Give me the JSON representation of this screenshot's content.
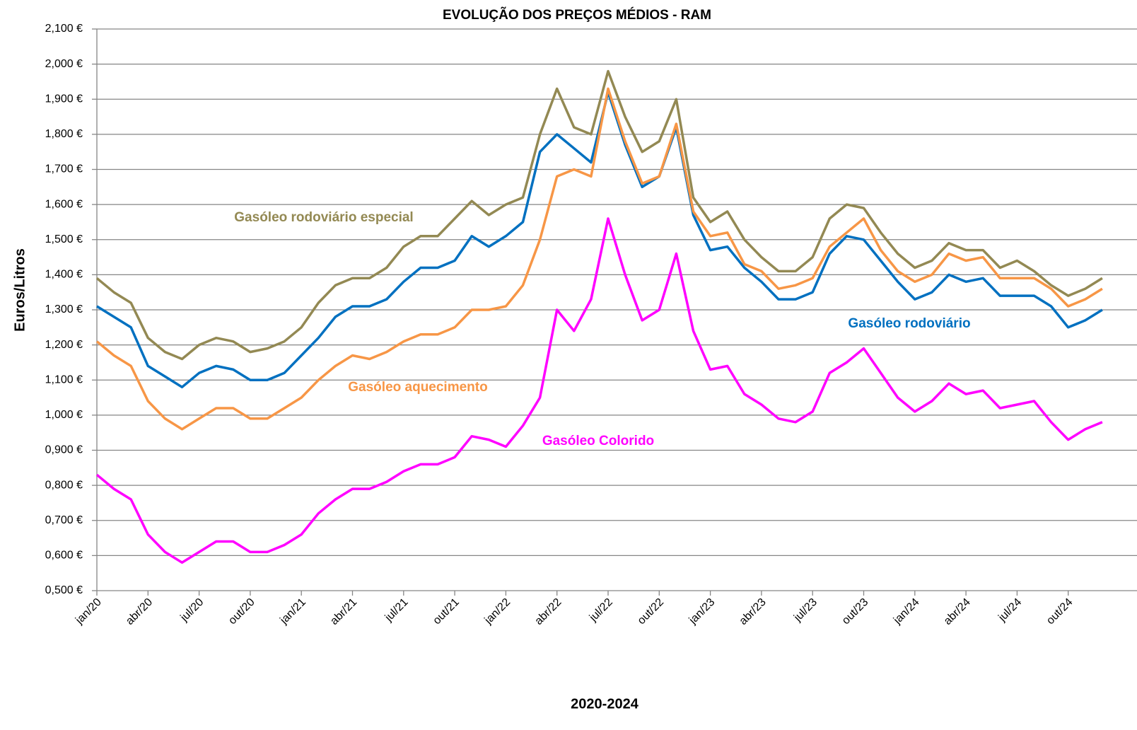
{
  "chart_data": {
    "type": "line",
    "title": "EVOLUÇÃO DOS PREÇOS MÉDIOS - RAM",
    "x_label": "2020-2024",
    "y_label": "Euros/Litros",
    "categories": [
      "jan/20",
      null,
      null,
      "abr/20",
      null,
      null,
      "jul/20",
      null,
      null,
      "out/20",
      null,
      null,
      "jan/21",
      null,
      null,
      "abr/21",
      null,
      null,
      "jul/21",
      null,
      null,
      "out/21",
      null,
      null,
      "jan/22",
      null,
      null,
      "abr/22",
      null,
      null,
      "jul/22",
      null,
      null,
      "out/22",
      null,
      null,
      "jan/23",
      null,
      null,
      "abr/23",
      null,
      null,
      "jul/23",
      null,
      null,
      "out/23",
      null,
      null,
      "jan/24",
      null,
      null,
      "abr/24",
      null,
      null,
      "jul/24",
      null,
      null,
      "out/24",
      null,
      null
    ],
    "ylim": [
      0.5,
      2.1
    ],
    "yticks": [
      {
        "value": 0.5,
        "label": "0,500 €"
      },
      {
        "value": 0.6,
        "label": "0,600 €"
      },
      {
        "value": 0.7,
        "label": "0,700 €"
      },
      {
        "value": 0.8,
        "label": "0,800 €"
      },
      {
        "value": 0.9,
        "label": "0,900 €"
      },
      {
        "value": 1.0,
        "label": "1,000 €"
      },
      {
        "value": 1.1,
        "label": "1,100 €"
      },
      {
        "value": 1.2,
        "label": "1,200 €"
      },
      {
        "value": 1.3,
        "label": "1,300 €"
      },
      {
        "value": 1.4,
        "label": "1,400 €"
      },
      {
        "value": 1.5,
        "label": "1,500 €"
      },
      {
        "value": 1.6,
        "label": "1,600 €"
      },
      {
        "value": 1.7,
        "label": "1,700 €"
      },
      {
        "value": 1.8,
        "label": "1,800 €"
      },
      {
        "value": 1.9,
        "label": "1,900 €"
      },
      {
        "value": 2.0,
        "label": "2,000 €"
      },
      {
        "value": 2.1,
        "label": "2,100 €"
      }
    ],
    "grid": true,
    "series": [
      {
        "name": "Gasóleo rodoviário especial",
        "color": "#938953",
        "values": [
          1.39,
          1.35,
          1.32,
          1.22,
          1.18,
          1.16,
          1.2,
          1.22,
          1.21,
          1.18,
          1.19,
          1.21,
          1.25,
          1.32,
          1.37,
          1.39,
          1.39,
          1.42,
          1.48,
          1.51,
          1.51,
          1.56,
          1.61,
          1.57,
          1.6,
          1.62,
          1.8,
          1.93,
          1.82,
          1.8,
          1.98,
          1.85,
          1.75,
          1.78,
          1.9,
          1.62,
          1.55,
          1.58,
          1.5,
          1.45,
          1.41,
          1.41,
          1.45,
          1.56,
          1.6,
          1.59,
          1.52,
          1.46,
          1.42,
          1.44,
          1.49,
          1.47,
          1.47,
          1.42,
          1.44,
          1.41,
          1.37,
          1.34,
          1.36,
          1.39
        ]
      },
      {
        "name": "Gasóleo rodoviário",
        "color": "#0070c0",
        "values": [
          1.31,
          1.28,
          1.25,
          1.14,
          1.11,
          1.08,
          1.12,
          1.14,
          1.13,
          1.1,
          1.1,
          1.12,
          1.17,
          1.22,
          1.28,
          1.31,
          1.31,
          1.33,
          1.38,
          1.42,
          1.42,
          1.44,
          1.51,
          1.48,
          1.51,
          1.55,
          1.75,
          1.8,
          1.76,
          1.72,
          1.92,
          1.77,
          1.65,
          1.68,
          1.82,
          1.57,
          1.47,
          1.48,
          1.42,
          1.38,
          1.33,
          1.33,
          1.35,
          1.46,
          1.51,
          1.5,
          1.44,
          1.38,
          1.33,
          1.35,
          1.4,
          1.38,
          1.39,
          1.34,
          1.34,
          1.34,
          1.31,
          1.25,
          1.27,
          1.3
        ]
      },
      {
        "name": "Gasóleo aquecimento",
        "color": "#f79646",
        "values": [
          1.21,
          1.17,
          1.14,
          1.04,
          0.99,
          0.96,
          0.99,
          1.02,
          1.02,
          0.99,
          0.99,
          1.02,
          1.05,
          1.1,
          1.14,
          1.17,
          1.16,
          1.18,
          1.21,
          1.23,
          1.23,
          1.25,
          1.3,
          1.3,
          1.31,
          1.37,
          1.5,
          1.68,
          1.7,
          1.68,
          1.93,
          1.78,
          1.66,
          1.68,
          1.83,
          1.58,
          1.51,
          1.52,
          1.43,
          1.41,
          1.36,
          1.37,
          1.39,
          1.48,
          1.52,
          1.56,
          1.47,
          1.41,
          1.38,
          1.4,
          1.46,
          1.44,
          1.45,
          1.39,
          1.39,
          1.39,
          1.36,
          1.31,
          1.33,
          1.36
        ]
      },
      {
        "name": "Gasóleo Colorido",
        "color": "#ff00ff",
        "values": [
          0.83,
          0.79,
          0.76,
          0.66,
          0.61,
          0.58,
          0.61,
          0.64,
          0.64,
          0.61,
          0.61,
          0.63,
          0.66,
          0.72,
          0.76,
          0.79,
          0.79,
          0.81,
          0.84,
          0.86,
          0.86,
          0.88,
          0.94,
          0.93,
          0.91,
          0.97,
          1.05,
          1.3,
          1.24,
          1.33,
          1.56,
          1.4,
          1.27,
          1.3,
          1.46,
          1.24,
          1.13,
          1.14,
          1.06,
          1.03,
          0.99,
          0.98,
          1.01,
          1.12,
          1.15,
          1.19,
          1.12,
          1.05,
          1.01,
          1.04,
          1.09,
          1.06,
          1.07,
          1.02,
          1.03,
          1.04,
          0.98,
          0.93,
          0.96,
          0.98
        ]
      }
    ]
  }
}
